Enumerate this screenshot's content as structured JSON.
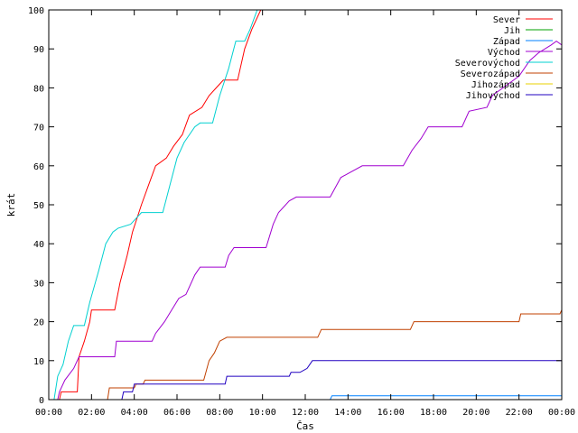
{
  "chart_data": {
    "type": "line",
    "xlabel": "Čas",
    "ylabel": "krát",
    "ylim": [
      0,
      100
    ],
    "xlim": [
      "00:00",
      "00:00"
    ],
    "x_ticks": [
      "00:00",
      "02:00",
      "04:00",
      "06:00",
      "08:00",
      "10:00",
      "12:00",
      "14:00",
      "16:00",
      "18:00",
      "20:00",
      "22:00",
      "00:00"
    ],
    "y_ticks": [
      "0",
      "10",
      "20",
      "30",
      "40",
      "50",
      "60",
      "70",
      "80",
      "90",
      "100"
    ],
    "grid": false,
    "legend_position": "top-right",
    "series": [
      {
        "name": "Sever",
        "color": "#ff0000",
        "points": [
          [
            "00:30",
            0
          ],
          [
            "00:35",
            2
          ],
          [
            "01:20",
            2
          ],
          [
            "01:25",
            11
          ],
          [
            "01:40",
            15
          ],
          [
            "01:55",
            20
          ],
          [
            "02:00",
            23
          ],
          [
            "03:05",
            23
          ],
          [
            "03:20",
            30
          ],
          [
            "03:40",
            37
          ],
          [
            "03:55",
            43
          ],
          [
            "04:20",
            50
          ],
          [
            "04:40",
            55
          ],
          [
            "05:00",
            60
          ],
          [
            "05:30",
            62
          ],
          [
            "05:50",
            65
          ],
          [
            "06:15",
            68
          ],
          [
            "06:35",
            73
          ],
          [
            "07:10",
            75
          ],
          [
            "07:30",
            78
          ],
          [
            "07:50",
            80
          ],
          [
            "08:10",
            82
          ],
          [
            "08:50",
            82
          ],
          [
            "09:10",
            90
          ],
          [
            "09:30",
            95
          ],
          [
            "09:55",
            100
          ]
        ]
      },
      {
        "name": "Jih",
        "color": "#00a000",
        "points": []
      },
      {
        "name": "Západ",
        "color": "#0080ff",
        "points": [
          [
            "13:10",
            0
          ],
          [
            "13:15",
            1
          ],
          [
            "24:00",
            1
          ]
        ]
      },
      {
        "name": "Východ",
        "color": "#a000d0",
        "points": [
          [
            "00:25",
            0
          ],
          [
            "00:30",
            2
          ],
          [
            "00:45",
            5
          ],
          [
            "01:10",
            8
          ],
          [
            "01:25",
            11
          ],
          [
            "03:05",
            11
          ],
          [
            "03:10",
            15
          ],
          [
            "04:50",
            15
          ],
          [
            "05:00",
            17
          ],
          [
            "05:25",
            20
          ],
          [
            "05:45",
            23
          ],
          [
            "06:05",
            26
          ],
          [
            "06:25",
            27
          ],
          [
            "06:50",
            32
          ],
          [
            "07:05",
            34
          ],
          [
            "08:15",
            34
          ],
          [
            "08:25",
            37
          ],
          [
            "08:40",
            39
          ],
          [
            "10:10",
            39
          ],
          [
            "10:30",
            45
          ],
          [
            "10:45",
            48
          ],
          [
            "11:15",
            51
          ],
          [
            "11:35",
            52
          ],
          [
            "13:10",
            52
          ],
          [
            "13:40",
            57
          ],
          [
            "14:00",
            58
          ],
          [
            "14:40",
            60
          ],
          [
            "16:35",
            60
          ],
          [
            "17:00",
            64
          ],
          [
            "17:25",
            67
          ],
          [
            "17:45",
            70
          ],
          [
            "19:20",
            70
          ],
          [
            "19:40",
            74
          ],
          [
            "20:30",
            75
          ],
          [
            "20:45",
            78
          ],
          [
            "21:15",
            80
          ],
          [
            "22:00",
            83
          ],
          [
            "22:30",
            87
          ],
          [
            "22:55",
            89
          ],
          [
            "23:30",
            91
          ],
          [
            "23:45",
            92
          ],
          [
            "24:00",
            91
          ]
        ]
      },
      {
        "name": "Severovýchod",
        "color": "#00d0d0",
        "points": [
          [
            "00:15",
            0
          ],
          [
            "00:25",
            6
          ],
          [
            "00:40",
            9
          ],
          [
            "00:55",
            15
          ],
          [
            "01:10",
            19
          ],
          [
            "01:40",
            19
          ],
          [
            "01:55",
            25
          ],
          [
            "02:20",
            33
          ],
          [
            "02:40",
            40
          ],
          [
            "03:00",
            43
          ],
          [
            "03:15",
            44
          ],
          [
            "03:50",
            45
          ],
          [
            "04:20",
            48
          ],
          [
            "05:20",
            48
          ],
          [
            "05:40",
            55
          ],
          [
            "06:00",
            62
          ],
          [
            "06:20",
            66
          ],
          [
            "06:50",
            70
          ],
          [
            "07:05",
            71
          ],
          [
            "07:40",
            71
          ],
          [
            "08:00",
            78
          ],
          [
            "08:25",
            85
          ],
          [
            "08:45",
            92
          ],
          [
            "09:10",
            92
          ],
          [
            "09:25",
            95
          ],
          [
            "09:45",
            100
          ]
        ]
      },
      {
        "name": "Severozápad",
        "color": "#c04000",
        "points": [
          [
            "02:45",
            0
          ],
          [
            "02:50",
            3
          ],
          [
            "04:00",
            3
          ],
          [
            "04:05",
            4
          ],
          [
            "04:25",
            4
          ],
          [
            "04:30",
            5
          ],
          [
            "07:15",
            5
          ],
          [
            "07:30",
            10
          ],
          [
            "07:45",
            12
          ],
          [
            "08:00",
            15
          ],
          [
            "08:20",
            16
          ],
          [
            "12:35",
            16
          ],
          [
            "12:45",
            18
          ],
          [
            "16:55",
            18
          ],
          [
            "17:05",
            20
          ],
          [
            "22:00",
            20
          ],
          [
            "22:05",
            22
          ],
          [
            "23:55",
            22
          ],
          [
            "24:00",
            23
          ]
        ]
      },
      {
        "name": "Jihozápad",
        "color": "#e8d000",
        "points": []
      },
      {
        "name": "Jihovýchod",
        "color": "#2000c0",
        "points": [
          [
            "03:25",
            0
          ],
          [
            "03:30",
            2
          ],
          [
            "03:55",
            2
          ],
          [
            "04:00",
            4
          ],
          [
            "08:15",
            4
          ],
          [
            "08:20",
            6
          ],
          [
            "11:15",
            6
          ],
          [
            "11:20",
            7
          ],
          [
            "11:45",
            7
          ],
          [
            "12:05",
            8
          ],
          [
            "12:20",
            10
          ],
          [
            "24:00",
            10
          ]
        ]
      }
    ]
  }
}
